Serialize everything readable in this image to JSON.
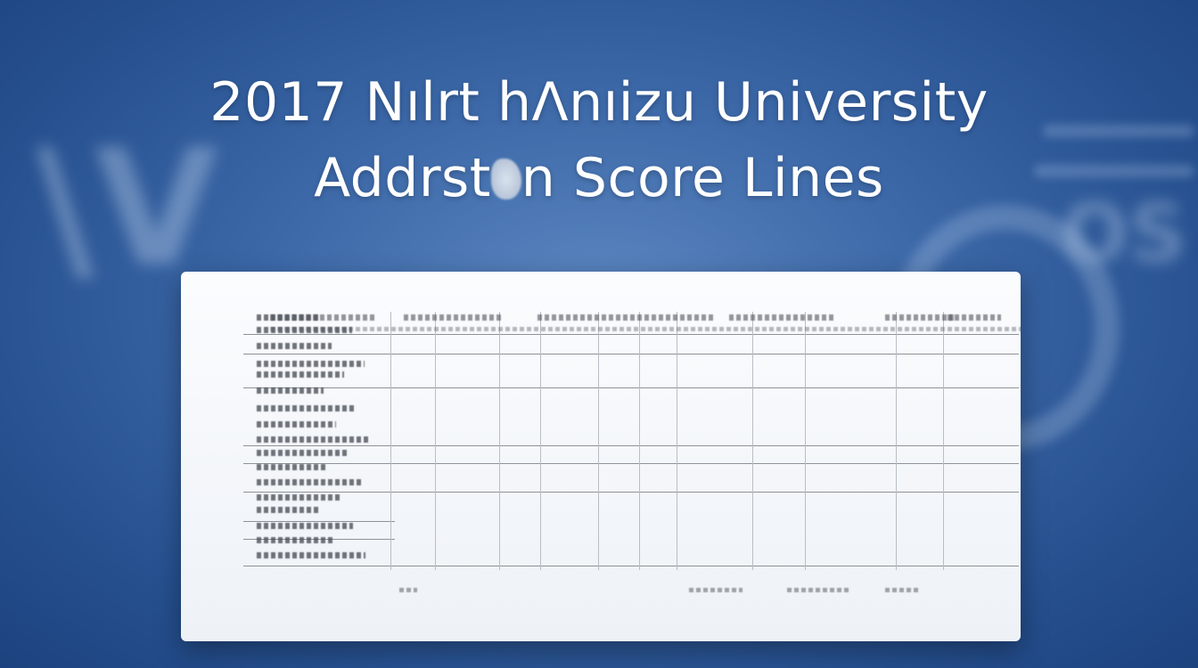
{
  "title": {
    "line1": "2017 Nılrt hΛnıizu University",
    "line2_before": "Addrst",
    "line2_after": "n Score Lines"
  },
  "colors": {
    "background": "#3c68a8",
    "title_text": "#ffffff",
    "paper": "#f6f8fb"
  }
}
